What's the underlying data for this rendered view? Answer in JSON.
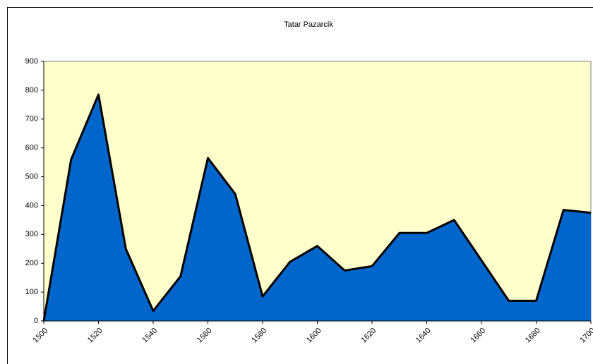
{
  "chart_data": {
    "type": "area",
    "title": "Tatar Pazarcik",
    "x": [
      1500,
      1510,
      1520,
      1530,
      1540,
      1550,
      1560,
      1570,
      1580,
      1590,
      1600,
      1610,
      1620,
      1630,
      1640,
      1650,
      1660,
      1670,
      1680,
      1690,
      1700
    ],
    "values": [
      0,
      560,
      785,
      250,
      35,
      155,
      565,
      440,
      85,
      205,
      260,
      175,
      190,
      305,
      305,
      350,
      210,
      70,
      70,
      385,
      375
    ],
    "color": "#0066cc",
    "line_color": "#000000",
    "plot_background": "#ffffcc",
    "xlim": [
      1500,
      1700
    ],
    "xticks": [
      1500,
      1520,
      1540,
      1560,
      1580,
      1600,
      1620,
      1640,
      1660,
      1680,
      1700
    ],
    "ylim": [
      0,
      900
    ],
    "yticks": [
      0,
      100,
      200,
      300,
      400,
      500,
      600,
      700,
      800,
      900
    ],
    "grid": false
  }
}
